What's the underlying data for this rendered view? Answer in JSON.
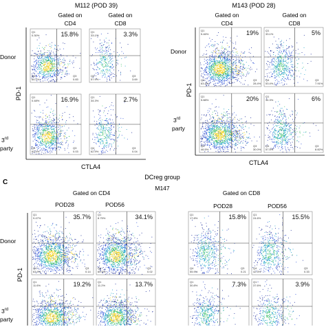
{
  "figure": {
    "panel_c_letter": "C",
    "panel_c_group": "DCreg group",
    "panel_c_animal": "M147",
    "panel_c_gate_cd4": "Gated on CD4",
    "panel_c_gate_cd8": "Gated on CD8"
  },
  "chart_data": [
    {
      "type": "scatter",
      "panel": "M112",
      "title": "M112 (POD 39)",
      "xlabel": "CTLA4",
      "ylabel": "PD-1",
      "columns": [
        "Gated on CD4",
        "Gated on CD8"
      ],
      "rows": [
        {
          "label": "Donor",
          "q2": [
            "15.8%",
            "3.3%"
          ]
        },
        {
          "label": "3rd party",
          "label_main": "3",
          "label_sup": "rd",
          "label_sub": "party",
          "q2": [
            "16.9%",
            "2.7%"
          ]
        }
      ],
      "corner_tags": {
        "q1": [
          [
            "0.30%",
            "33.1%"
          ],
          [
            "0.48%",
            "34.3%"
          ]
        ],
        "q4": [
          [
            "64.1%",
            "57.9%"
          ],
          [
            "63.4%",
            "62.9%"
          ]
        ],
        "q3": [
          [
            "0.83",
            "3.69"
          ],
          [
            "0.03",
            "0.04"
          ]
        ]
      }
    },
    {
      "type": "scatter",
      "panel": "M143",
      "title": "M143 (POD 28)",
      "xlabel": "CTLA4",
      "ylabel": "PD-1",
      "columns": [
        "Gated on CD4",
        "Gated on CD8"
      ],
      "rows": [
        {
          "label": "Donor",
          "q2": [
            "19%",
            "5%"
          ]
        },
        {
          "label": "3rd party",
          "label_main": "3",
          "label_sup": "rd",
          "label_sub": "party",
          "q2": [
            "20%",
            "6%"
          ]
        }
      ],
      "corner_tags": {
        "q1": [
          [
            "5.46%",
            "33.1%"
          ],
          [
            "5.88%",
            "34.3%"
          ]
        ],
        "q4": [
          [
            "63.4%",
            "53.4%"
          ],
          [
            "46.5%",
            "57.5%"
          ]
        ],
        "q3": [
          [
            "28.4%",
            "7.91%"
          ],
          [
            "30.0%",
            "8.82%"
          ]
        ]
      }
    },
    {
      "type": "scatter",
      "panel": "C",
      "xlabel": "",
      "ylabel": "PD-1",
      "columns": [
        "POD28",
        "POD56",
        "POD28",
        "POD56"
      ],
      "rows": [
        {
          "label": "Donor",
          "q2": [
            "35.7%",
            "34.1%",
            "15.8%",
            "15.5%"
          ]
        },
        {
          "label": "3rd party",
          "label_main": "3",
          "label_sup": "rd",
          "label_sub": "party",
          "q2": [
            "19.2%",
            "13.7%",
            "7.3%",
            "3.9%"
          ]
        }
      ],
      "corner_tags": {
        "q1": [
          [
            "9.47%",
            "8.75%",
            "17.8%",
            "24.6%"
          ],
          [
            "11.6%",
            "11.2%",
            "30.8%",
            "37.6%"
          ]
        ],
        "q4": [
          [
            "63.9%",
            "60.5%",
            "55.9%",
            "42.3%"
          ]
        ],
        "q3": [
          [
            "0.14",
            "0.02",
            "0.21",
            "0.33"
          ]
        ]
      }
    }
  ]
}
